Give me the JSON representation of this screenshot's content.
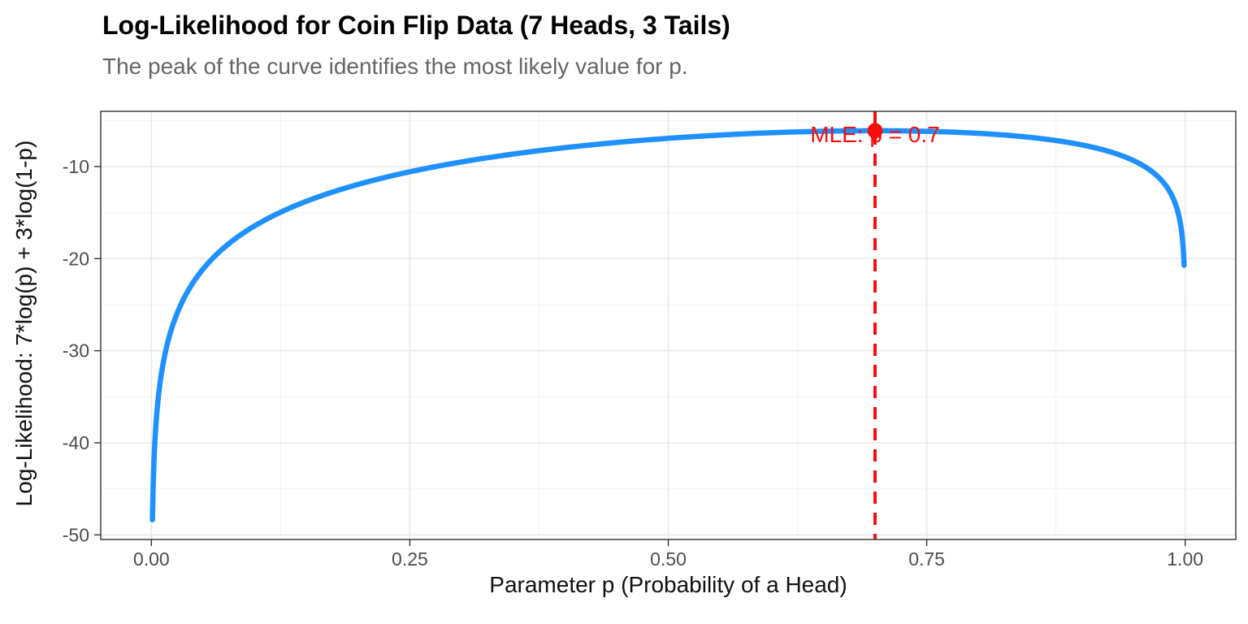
{
  "chart_data": {
    "type": "line",
    "title": "Log-Likelihood for Coin Flip Data (7 Heads, 3 Tails)",
    "subtitle": "The peak of the curve identifies the most likely value for p.",
    "xlabel": "Parameter p (Probability of a Head)",
    "ylabel": "Log-Likelihood: 7*log(p) + 3*log(1-p)",
    "coin": {
      "heads": 7,
      "tails": 3
    },
    "p_range": [
      0.001,
      0.999
    ],
    "xlim": [
      -0.049,
      1.049
    ],
    "ylim": [
      -50.5,
      -4.0
    ],
    "xtick_values": [
      0,
      0.25,
      0.5,
      0.75,
      1.0
    ],
    "xtick_labels": [
      "0.00",
      "0.25",
      "0.50",
      "0.75",
      "1.00"
    ],
    "ytick_values": [
      -10,
      -20,
      -30,
      -40,
      -50
    ],
    "ytick_labels": [
      "-10",
      "-20",
      "-30",
      "-40",
      "-50"
    ],
    "grid": {
      "major": true,
      "minor": true
    },
    "legend": "none",
    "mle": {
      "p": 0.7,
      "loglik": -6.11,
      "label": "MLE: p = 0.7"
    },
    "series": [
      {
        "name": "log-likelihood",
        "color": "#1E90FF",
        "formula": "7*log(p) + 3*log(1-p)",
        "points": [
          [
            0.001,
            -48.36
          ],
          [
            0.005,
            -37.1
          ],
          [
            0.01,
            -32.27
          ],
          [
            0.02,
            -27.44
          ],
          [
            0.05,
            -21.12
          ],
          [
            0.1,
            -16.43
          ],
          [
            0.15,
            -13.77
          ],
          [
            0.2,
            -11.93
          ],
          [
            0.25,
            -10.57
          ],
          [
            0.3,
            -9.5
          ],
          [
            0.35,
            -8.64
          ],
          [
            0.4,
            -7.95
          ],
          [
            0.45,
            -7.38
          ],
          [
            0.5,
            -6.93
          ],
          [
            0.55,
            -6.58
          ],
          [
            0.6,
            -6.32
          ],
          [
            0.65,
            -6.17
          ],
          [
            0.7,
            -6.11
          ],
          [
            0.75,
            -6.17
          ],
          [
            0.8,
            -6.39
          ],
          [
            0.85,
            -6.83
          ],
          [
            0.9,
            -7.65
          ],
          [
            0.95,
            -9.35
          ],
          [
            0.97,
            -10.73
          ],
          [
            0.98,
            -11.88
          ],
          [
            0.99,
            -13.89
          ],
          [
            0.995,
            -15.93
          ],
          [
            0.999,
            -20.73
          ]
        ]
      }
    ],
    "colors": {
      "curve": "#1E90FF",
      "accent_red": "#F80D0D",
      "grid_major": "#E8E8E8",
      "grid_minor": "#F3F3F3",
      "panel_border": "#333333",
      "tick_text": "#4D4D4D",
      "subtitle_text": "#666666"
    }
  }
}
